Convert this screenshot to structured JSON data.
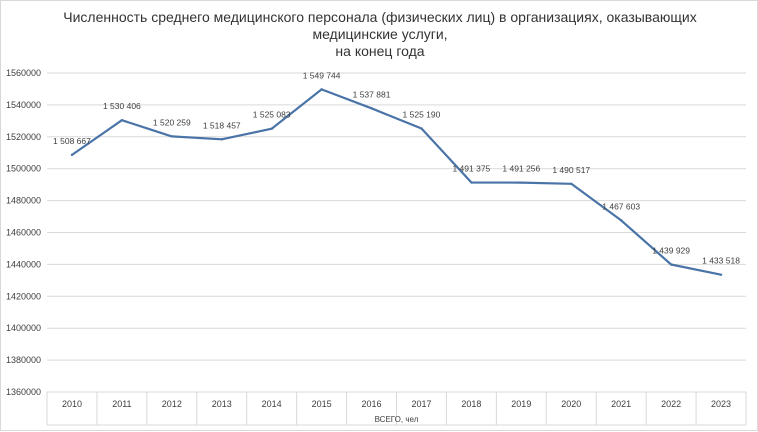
{
  "chart_data": {
    "type": "line",
    "title_lines": [
      "Численность  среднего медицинского персонала  (физических лиц) в организациях, оказывающих",
      "медицинские услуги,",
      "на конец  года"
    ],
    "xlabel": "ВСЕГО, чел",
    "ylabel": "",
    "categories": [
      "2010",
      "2011",
      "2012",
      "2013",
      "2014",
      "2015",
      "2016",
      "2017",
      "2018",
      "2019",
      "2020",
      "2021",
      "2022",
      "2023"
    ],
    "series": [
      {
        "values": [
          1508667,
          1530406,
          1520259,
          1518457,
          1525083,
          1549744,
          1537881,
          1525190,
          1491375,
          1491256,
          1490517,
          1467603,
          1439929,
          1433518
        ],
        "data_labels": [
          "1 508 667",
          "1 530 406",
          "1 520 259",
          "1 518 457",
          "1 525 083",
          "1 549 744",
          "1 537 881",
          "1 525 190",
          "1 491 375",
          "1 491 256",
          "1 490 517",
          "1 467 603",
          "1 439 929",
          "1 433 518"
        ],
        "color": "#4a74a8"
      }
    ],
    "ylim": [
      1360000,
      1560000
    ],
    "yticks": [
      1360000,
      1380000,
      1400000,
      1420000,
      1440000,
      1460000,
      1480000,
      1500000,
      1520000,
      1540000,
      1560000
    ],
    "ytick_labels": [
      "1360000",
      "1380000",
      "1400000",
      "1420000",
      "1440000",
      "1460000",
      "1480000",
      "1500000",
      "1520000",
      "1540000",
      "1560000"
    ],
    "grid": true,
    "legend": "none",
    "gridline_color": "#d9d9d9"
  }
}
